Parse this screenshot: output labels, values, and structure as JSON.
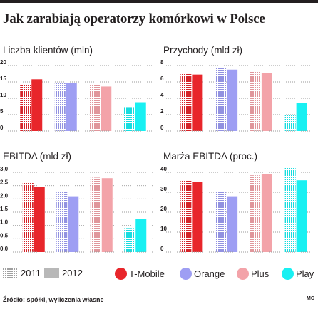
{
  "title": "Jak zarabiają operatorzy komórkowi w Polsce",
  "source": "Źródło: spółki, wyliczenia własne",
  "credit": "MC",
  "legend": {
    "years": [
      "2011",
      "2012"
    ],
    "operators": [
      "T-Mobile",
      "Orange",
      "Plus",
      "Play"
    ]
  },
  "colors": {
    "T-Mobile": "#e8262b",
    "Orange": "#9e9ef3",
    "Plus": "#f3a3a9",
    "Play": "#18f0f2",
    "year_swatch": "#b8b8b8"
  },
  "chart_data": [
    {
      "type": "bar",
      "title": "Liczba klientów (mln)",
      "ylim": [
        0,
        20
      ],
      "yticks": [
        "0",
        "5",
        "10",
        "15",
        "20"
      ],
      "series": [
        {
          "name": "2011",
          "values": [
            14.2,
            14.8,
            14.0,
            7.3
          ]
        },
        {
          "name": "2012",
          "values": [
            15.8,
            14.7,
            13.6,
            8.8
          ]
        }
      ]
    },
    {
      "type": "bar",
      "title": "Przychody (mld zł)",
      "ylim": [
        0,
        8
      ],
      "yticks": [
        "0",
        "2",
        "4",
        "6",
        "8"
      ],
      "series": [
        {
          "name": "2011",
          "values": [
            7.1,
            7.7,
            7.3,
            2.0
          ]
        },
        {
          "name": "2012",
          "values": [
            6.9,
            7.5,
            7.1,
            3.4
          ]
        }
      ]
    },
    {
      "type": "bar",
      "title": "EBITDA (mld zł)",
      "ylim": [
        0,
        3.0
      ],
      "yticks": [
        "0,0",
        "0,5",
        "1,0",
        "1,5",
        "2,0",
        "2,5",
        "3,0"
      ],
      "series": [
        {
          "name": "2011",
          "values": [
            2.6,
            2.3,
            2.8,
            0.9
          ]
        },
        {
          "name": "2012",
          "values": [
            2.45,
            2.1,
            2.78,
            1.25
          ]
        }
      ]
    },
    {
      "type": "bar",
      "title": "Marża EBITDA (proc.)",
      "ylim": [
        0,
        40
      ],
      "yticks": [
        "0",
        "10",
        "20",
        "30",
        "40"
      ],
      "series": [
        {
          "name": "2011",
          "values": [
            36,
            30,
            38.5,
            42.5
          ]
        },
        {
          "name": "2012",
          "values": [
            35,
            28,
            39,
            36
          ]
        }
      ]
    }
  ]
}
